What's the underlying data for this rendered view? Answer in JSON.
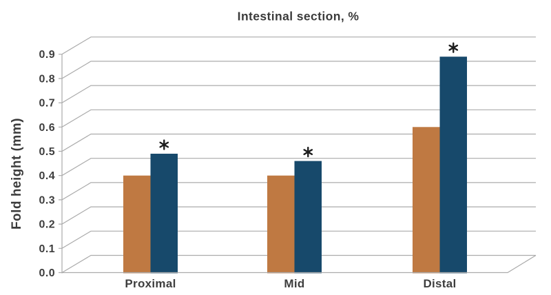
{
  "chart_data": {
    "type": "bar",
    "style": "grouped-oblique-3d",
    "title": "Intestinal section, %",
    "xlabel": "",
    "ylabel": "Fold height (mm)",
    "categories": [
      "Proximal",
      "Mid",
      "Distal"
    ],
    "series": [
      {
        "name": "orange-series",
        "color": "#BF7942",
        "values": [
          0.4,
          0.4,
          0.6
        ]
      },
      {
        "name": "navy-series",
        "color": "#17496B",
        "values": [
          0.49,
          0.46,
          0.89
        ],
        "significance": [
          "*",
          "*",
          "*"
        ]
      }
    ],
    "ylim": [
      0.0,
      0.9
    ],
    "ytick_step": 0.1,
    "ytick_labels": [
      "0.0",
      "0.1",
      "0.2",
      "0.3",
      "0.4",
      "0.5",
      "0.6",
      "0.7",
      "0.8",
      "0.9"
    ],
    "grid": true,
    "legend": "none",
    "colors": {
      "gridline": "#ABABAB",
      "text": "#3B3B3B",
      "annotation": "#1D1D1D",
      "background": "#FFFFFF"
    }
  }
}
